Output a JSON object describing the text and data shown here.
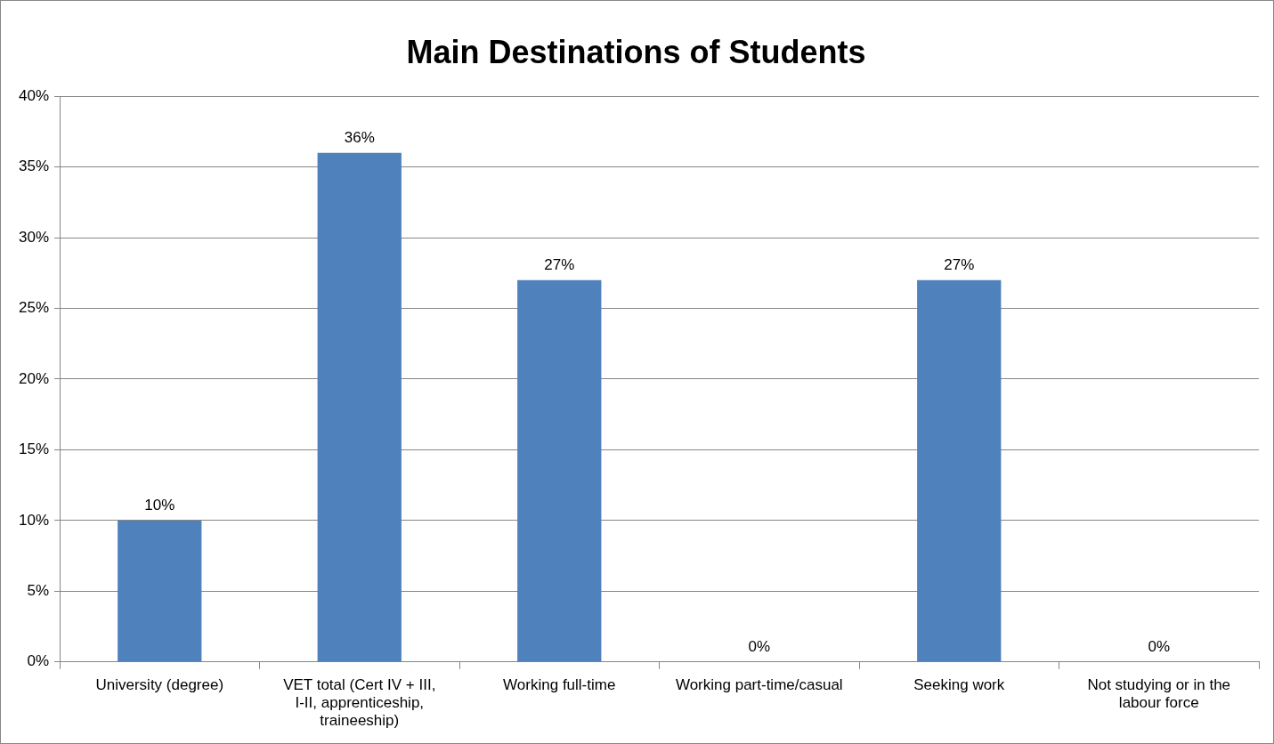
{
  "chart_data": {
    "type": "bar",
    "title": "Main Destinations of Students",
    "categories": [
      "University (degree)",
      "VET total (Cert IV + III, I-II, apprenticeship, traineeship)",
      "Working full-time",
      "Working part-time/casual",
      "Seeking work",
      "Not studying or in the labour force"
    ],
    "values": [
      10,
      36,
      27,
      0,
      27,
      0
    ],
    "value_labels": [
      "10%",
      "36%",
      "27%",
      "0%",
      "27%",
      "0%"
    ],
    "color": "#4f81bd",
    "ylim": [
      0,
      40
    ],
    "yticks": [
      {
        "value": 0,
        "label": "0%"
      },
      {
        "value": 5,
        "label": "5%"
      },
      {
        "value": 10,
        "label": "10%"
      },
      {
        "value": 15,
        "label": "15%"
      },
      {
        "value": 20,
        "label": "20%"
      },
      {
        "value": 25,
        "label": "25%"
      },
      {
        "value": 30,
        "label": "30%"
      },
      {
        "value": 35,
        "label": "35%"
      },
      {
        "value": 40,
        "label": "40%"
      }
    ],
    "grid": "y",
    "legend": false
  }
}
